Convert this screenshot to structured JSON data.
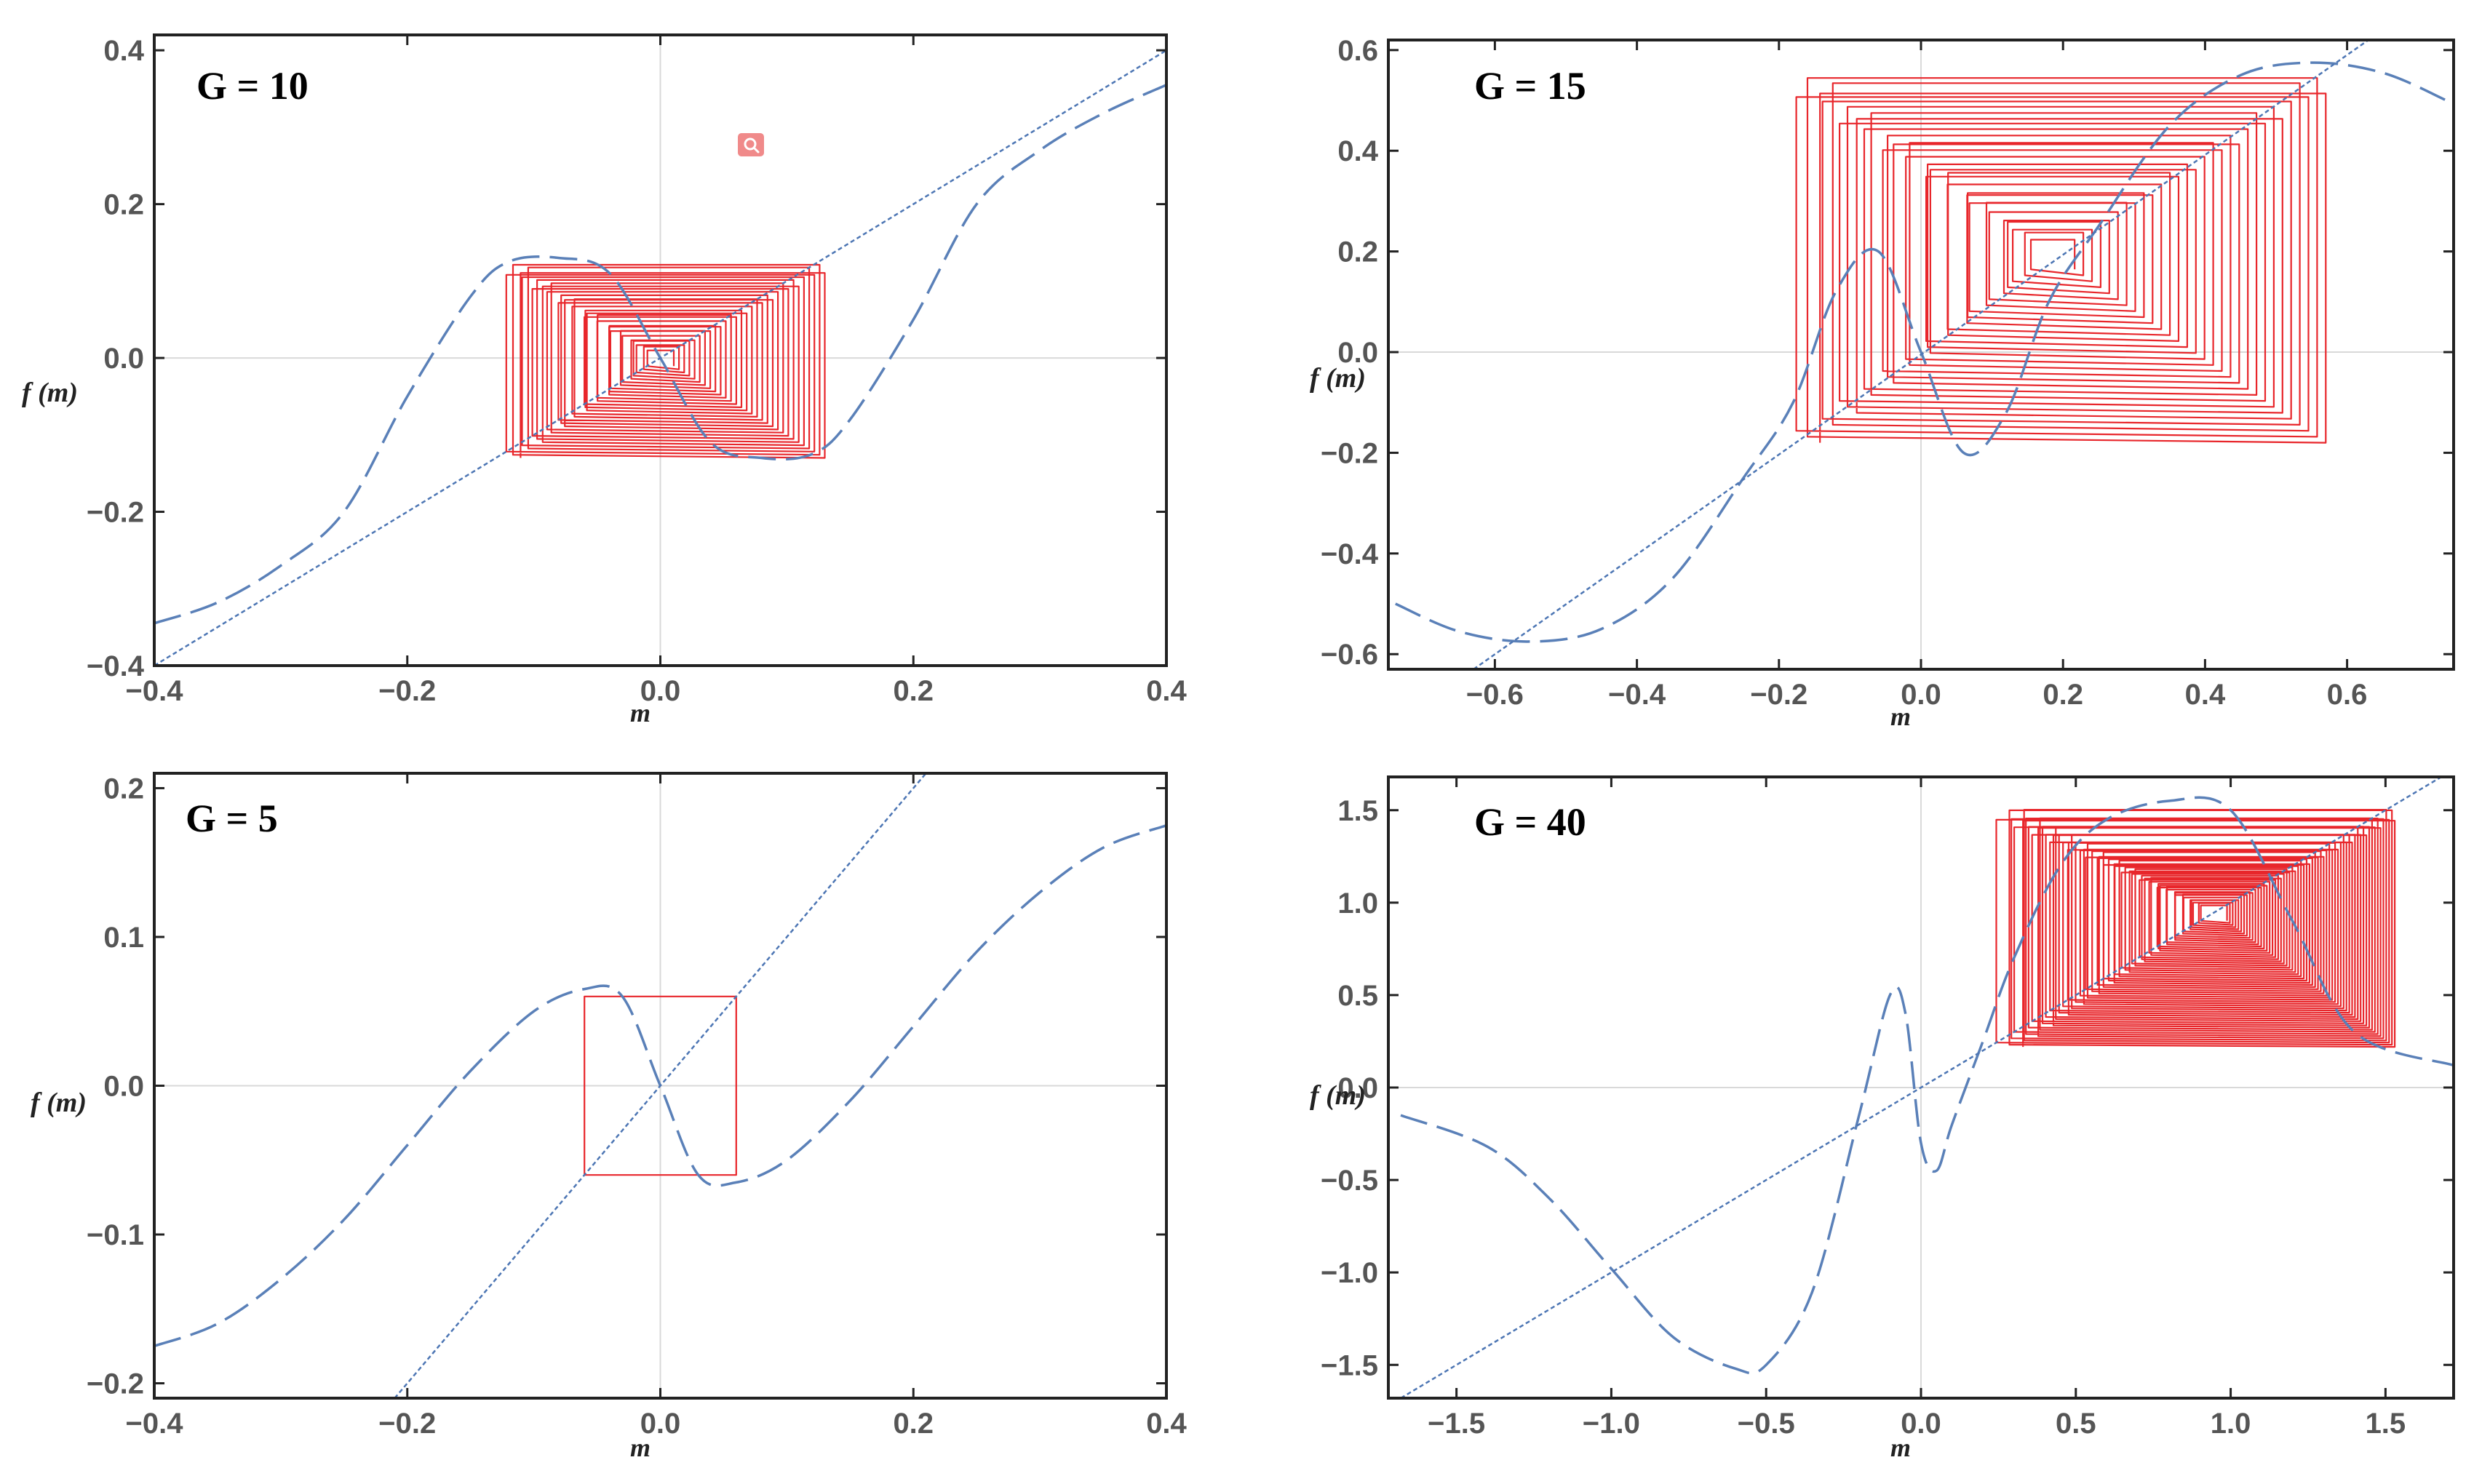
{
  "figure": {
    "search_badge_icon": "magnifier-icon",
    "colors": {
      "map": "#5a80b8",
      "diagonal": "#4d76b4",
      "cobweb": "#e8262b",
      "frame": "#222222"
    }
  },
  "chart_data": [
    {
      "type": "line",
      "title": "G = 10",
      "G": 10,
      "xlabel": "m",
      "ylabel": "f (m)",
      "xlim": [
        -0.4,
        0.4
      ],
      "ylim": [
        -0.4,
        0.42
      ],
      "xticks": [
        -0.4,
        -0.2,
        0.0,
        0.2,
        0.4
      ],
      "xtick_labels": [
        "−0.4",
        "−0.2",
        "0.0",
        "0.2",
        "0.4"
      ],
      "yticks": [
        -0.4,
        -0.2,
        0.0,
        0.2,
        0.4
      ],
      "ytick_labels": [
        "−0.4",
        "−0.2",
        "0.0",
        "0.2",
        "0.4"
      ],
      "series": [
        {
          "name": "f(m)",
          "style": "dashed",
          "x": [
            -0.4,
            -0.35,
            -0.3,
            -0.25,
            -0.2,
            -0.15,
            -0.12,
            -0.08,
            -0.04,
            0.0,
            0.04,
            0.08,
            0.12,
            0.15,
            0.2,
            0.25,
            0.3,
            0.35,
            0.4
          ],
          "y": [
            -0.345,
            -0.318,
            -0.27,
            -0.2,
            -0.05,
            0.08,
            0.125,
            0.13,
            0.11,
            0.0,
            -0.11,
            -0.13,
            -0.125,
            -0.08,
            0.05,
            0.2,
            0.27,
            0.318,
            0.355
          ]
        },
        {
          "name": "m",
          "style": "dotted",
          "x": [
            -0.4,
            0.4
          ],
          "y": [
            -0.4,
            0.4
          ]
        }
      ],
      "cobweb": {
        "color": "red",
        "m_range": [
          -0.13,
          0.13
        ],
        "f_range": [
          -0.13,
          0.13
        ],
        "iterations": 30
      }
    },
    {
      "type": "line",
      "title": "G = 15",
      "G": 15,
      "xlabel": "m",
      "ylabel": "f (m)",
      "xlim": [
        -0.75,
        0.75
      ],
      "ylim": [
        -0.63,
        0.62
      ],
      "xticks": [
        -0.6,
        -0.4,
        -0.2,
        0.0,
        0.2,
        0.4,
        0.6
      ],
      "xtick_labels": [
        "−0.6",
        "−0.4",
        "−0.2",
        "0.0",
        "0.2",
        "0.4",
        "0.6"
      ],
      "yticks": [
        -0.6,
        -0.4,
        -0.2,
        0.0,
        0.2,
        0.4,
        0.6
      ],
      "ytick_labels": [
        "−0.6",
        "−0.4",
        "−0.2",
        "0.0",
        "0.2",
        "0.4",
        "0.6"
      ],
      "series": [
        {
          "name": "f(m)",
          "style": "dashed",
          "x": [
            -0.74,
            -0.65,
            -0.55,
            -0.45,
            -0.35,
            -0.25,
            -0.18,
            -0.12,
            -0.06,
            0.0,
            0.06,
            0.12,
            0.18,
            0.25,
            0.35,
            0.45,
            0.55,
            0.65,
            0.74
          ],
          "y": [
            -0.5,
            -0.555,
            -0.575,
            -0.55,
            -0.45,
            -0.25,
            -0.1,
            0.12,
            0.2,
            0.0,
            -0.2,
            -0.12,
            0.1,
            0.25,
            0.45,
            0.55,
            0.575,
            0.555,
            0.5
          ]
        },
        {
          "name": "m",
          "style": "dotted",
          "x": [
            -0.63,
            0.63
          ],
          "y": [
            -0.63,
            0.62
          ]
        }
      ],
      "cobweb": {
        "color": "red",
        "m_range": [
          -0.2,
          0.57
        ],
        "f_range": [
          -0.18,
          0.57
        ],
        "iterations": 30
      }
    },
    {
      "type": "line",
      "title": "G = 5",
      "G": 5,
      "xlabel": "m",
      "ylabel": "f (m)",
      "xlim": [
        -0.4,
        0.4
      ],
      "ylim": [
        -0.21,
        0.21
      ],
      "xticks": [
        -0.4,
        -0.2,
        0.0,
        0.2,
        0.4
      ],
      "xtick_labels": [
        "−0.4",
        "−0.2",
        "0.0",
        "0.2",
        "0.4"
      ],
      "yticks": [
        -0.2,
        -0.1,
        0.0,
        0.1,
        0.2
      ],
      "ytick_labels": [
        "−0.2",
        "−0.1",
        "0.0",
        "0.1",
        "0.2"
      ],
      "series": [
        {
          "name": "f(m)",
          "style": "dashed",
          "x": [
            -0.4,
            -0.35,
            -0.3,
            -0.25,
            -0.2,
            -0.15,
            -0.1,
            -0.06,
            -0.03,
            0.0,
            0.03,
            0.06,
            0.1,
            0.15,
            0.2,
            0.25,
            0.3,
            0.35,
            0.4
          ],
          "y": [
            -0.175,
            -0.16,
            -0.13,
            -0.09,
            -0.04,
            0.01,
            0.05,
            0.065,
            0.06,
            0.0,
            -0.06,
            -0.065,
            -0.05,
            -0.01,
            0.04,
            0.09,
            0.13,
            0.16,
            0.175
          ]
        },
        {
          "name": "m",
          "style": "dotted",
          "x": [
            -0.21,
            0.21
          ],
          "y": [
            -0.21,
            0.21
          ]
        }
      ],
      "cobweb": {
        "color": "red",
        "m_range": [
          -0.06,
          0.06
        ],
        "f_range": [
          -0.06,
          0.06
        ],
        "iterations": 1
      }
    },
    {
      "type": "line",
      "title": "G = 40",
      "G": 40,
      "xlabel": "m",
      "ylabel": "f (m)",
      "xlim": [
        -1.72,
        1.72
      ],
      "ylim": [
        -1.68,
        1.68
      ],
      "xticks": [
        -1.5,
        -1.0,
        -0.5,
        0.0,
        0.5,
        1.0,
        1.5
      ],
      "xtick_labels": [
        "−1.5",
        "−1.0",
        "−0.5",
        "0.0",
        "0.5",
        "1.0",
        "1.5"
      ],
      "yticks": [
        -1.5,
        -1.0,
        -0.5,
        0.0,
        0.5,
        1.0,
        1.5
      ],
      "ytick_labels": [
        "−1.5",
        "−1.0",
        "−0.5",
        "0.0",
        "0.5",
        "1.0",
        "1.5"
      ],
      "series": [
        {
          "name": "f(m)",
          "style": "dashed",
          "x": [
            -1.68,
            -1.4,
            -1.2,
            -1.0,
            -0.8,
            -0.6,
            -0.5,
            -0.35,
            -0.2,
            -0.1,
            -0.05,
            0.0,
            0.05,
            0.1,
            0.2,
            0.3,
            0.45,
            0.6,
            0.8,
            1.0,
            1.2,
            1.4,
            1.72
          ],
          "y": [
            -0.15,
            -0.32,
            -0.6,
            -0.98,
            -1.35,
            -1.52,
            -1.5,
            -1.1,
            -0.15,
            0.5,
            0.4,
            -0.3,
            -0.45,
            -0.2,
            0.25,
            0.7,
            1.2,
            1.45,
            1.55,
            1.5,
            0.9,
            0.3,
            0.12
          ]
        },
        {
          "name": "m",
          "style": "dotted",
          "x": [
            -1.72,
            1.72
          ],
          "y": [
            -1.72,
            1.72
          ]
        }
      ],
      "cobweb": {
        "color": "red",
        "m_range": [
          0.22,
          1.53
        ],
        "f_range": [
          0.22,
          1.53
        ],
        "fixed_point": [
          0.95,
          0.95
        ],
        "iterations": 60
      }
    }
  ]
}
